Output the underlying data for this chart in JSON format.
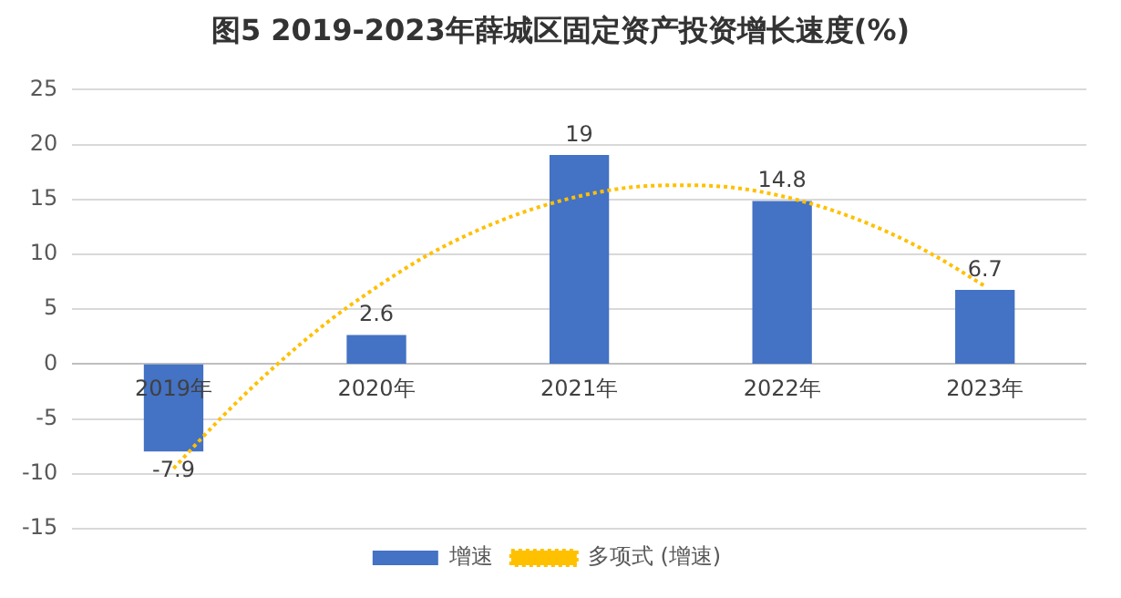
{
  "chart_data": {
    "type": "bar",
    "title": "图5 2019-2023年薛城区固定资产投资增长速度(%)",
    "x": [
      2019,
      2020,
      2021,
      2022,
      2023
    ],
    "xlim": [
      2018.5,
      2023.5
    ],
    "xticks": [
      {
        "value": 2019,
        "label": "2019年"
      },
      {
        "value": 2020,
        "label": "2020年"
      },
      {
        "value": 2021,
        "label": "2021年"
      },
      {
        "value": 2022,
        "label": "2022年"
      },
      {
        "value": 2023,
        "label": "2023年"
      }
    ],
    "ylim": [
      -15,
      25
    ],
    "yticks": [
      -15,
      -10,
      -5,
      0,
      5,
      10,
      15,
      20,
      25
    ],
    "grid": "y",
    "legend": "bottom",
    "series": [
      {
        "name": "增速",
        "color": "#4472c4",
        "values": [
          -7.9,
          2.6,
          19,
          14.8,
          6.7
        ],
        "value_labels": [
          "-7.9",
          "2.6",
          "19",
          "14.8",
          "6.7"
        ]
      },
      {
        "name": "多项式 (增速)",
        "type": "line",
        "color": "#ffc000",
        "line_style": "dotted",
        "marker": "none",
        "x": [
          2019,
          2019.25,
          2019.5,
          2019.75,
          2020,
          2020.25,
          2020.5,
          2020.75,
          2021,
          2021.25,
          2021.5,
          2021.75,
          2022,
          2022.25,
          2022.5,
          2022.75,
          2023
        ],
        "values": [
          -9.5,
          -4.6,
          -0.2,
          3.7,
          7.0,
          9.9,
          12.2,
          14.0,
          15.3,
          16.1,
          16.3,
          16.1,
          15.3,
          14.0,
          12.2,
          9.9,
          7.1
        ]
      }
    ]
  }
}
